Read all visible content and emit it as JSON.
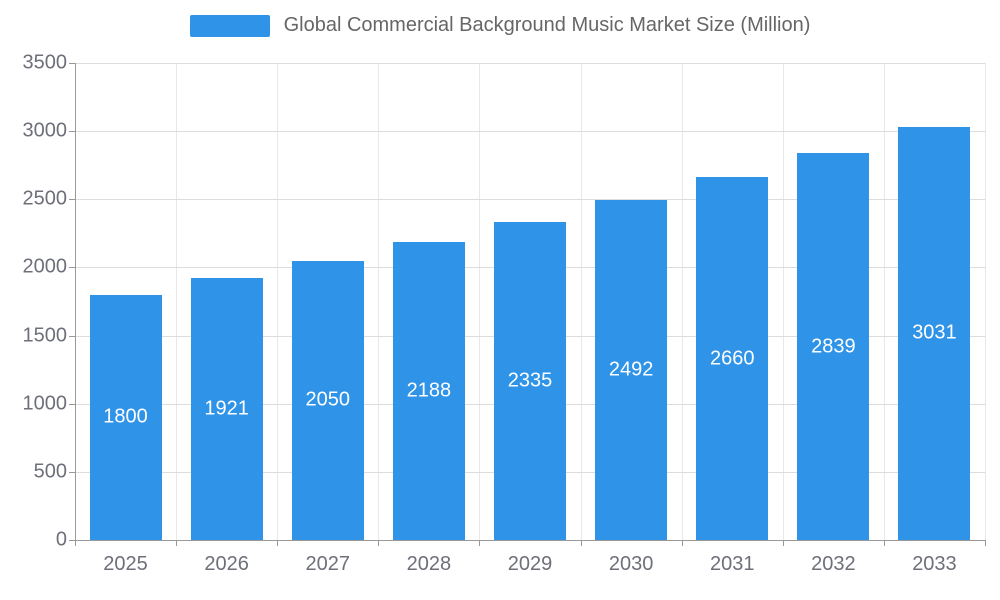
{
  "chart_data": {
    "type": "bar",
    "title": "Global Commercial Background Music Market Size (Million)",
    "legend": [
      {
        "label": "Global Commercial Background Music Market Size (Million)"
      }
    ],
    "categories": [
      "2025",
      "2026",
      "2027",
      "2028",
      "2029",
      "2030",
      "2031",
      "2032",
      "2033"
    ],
    "values": [
      1800,
      1921,
      2050,
      2188,
      2335,
      2492,
      2660,
      2839,
      3031
    ],
    "xlabel": "",
    "ylabel": "",
    "ylim": [
      0,
      3500
    ],
    "ytick_interval": 500,
    "ytick_labels": [
      "0",
      "500",
      "1000",
      "1500",
      "2000",
      "2500",
      "3000",
      "3500"
    ],
    "grid": true,
    "legend_position": "top-center",
    "value_labels": "inside-center-white",
    "colors": {
      "bar": "#2F93E8",
      "grid_h": "#dddddd",
      "grid_v": "#e8e8e8",
      "axis": "#999999",
      "tick_label": "#6E7079",
      "title": "#666666",
      "value_label": "#ffffff"
    }
  }
}
